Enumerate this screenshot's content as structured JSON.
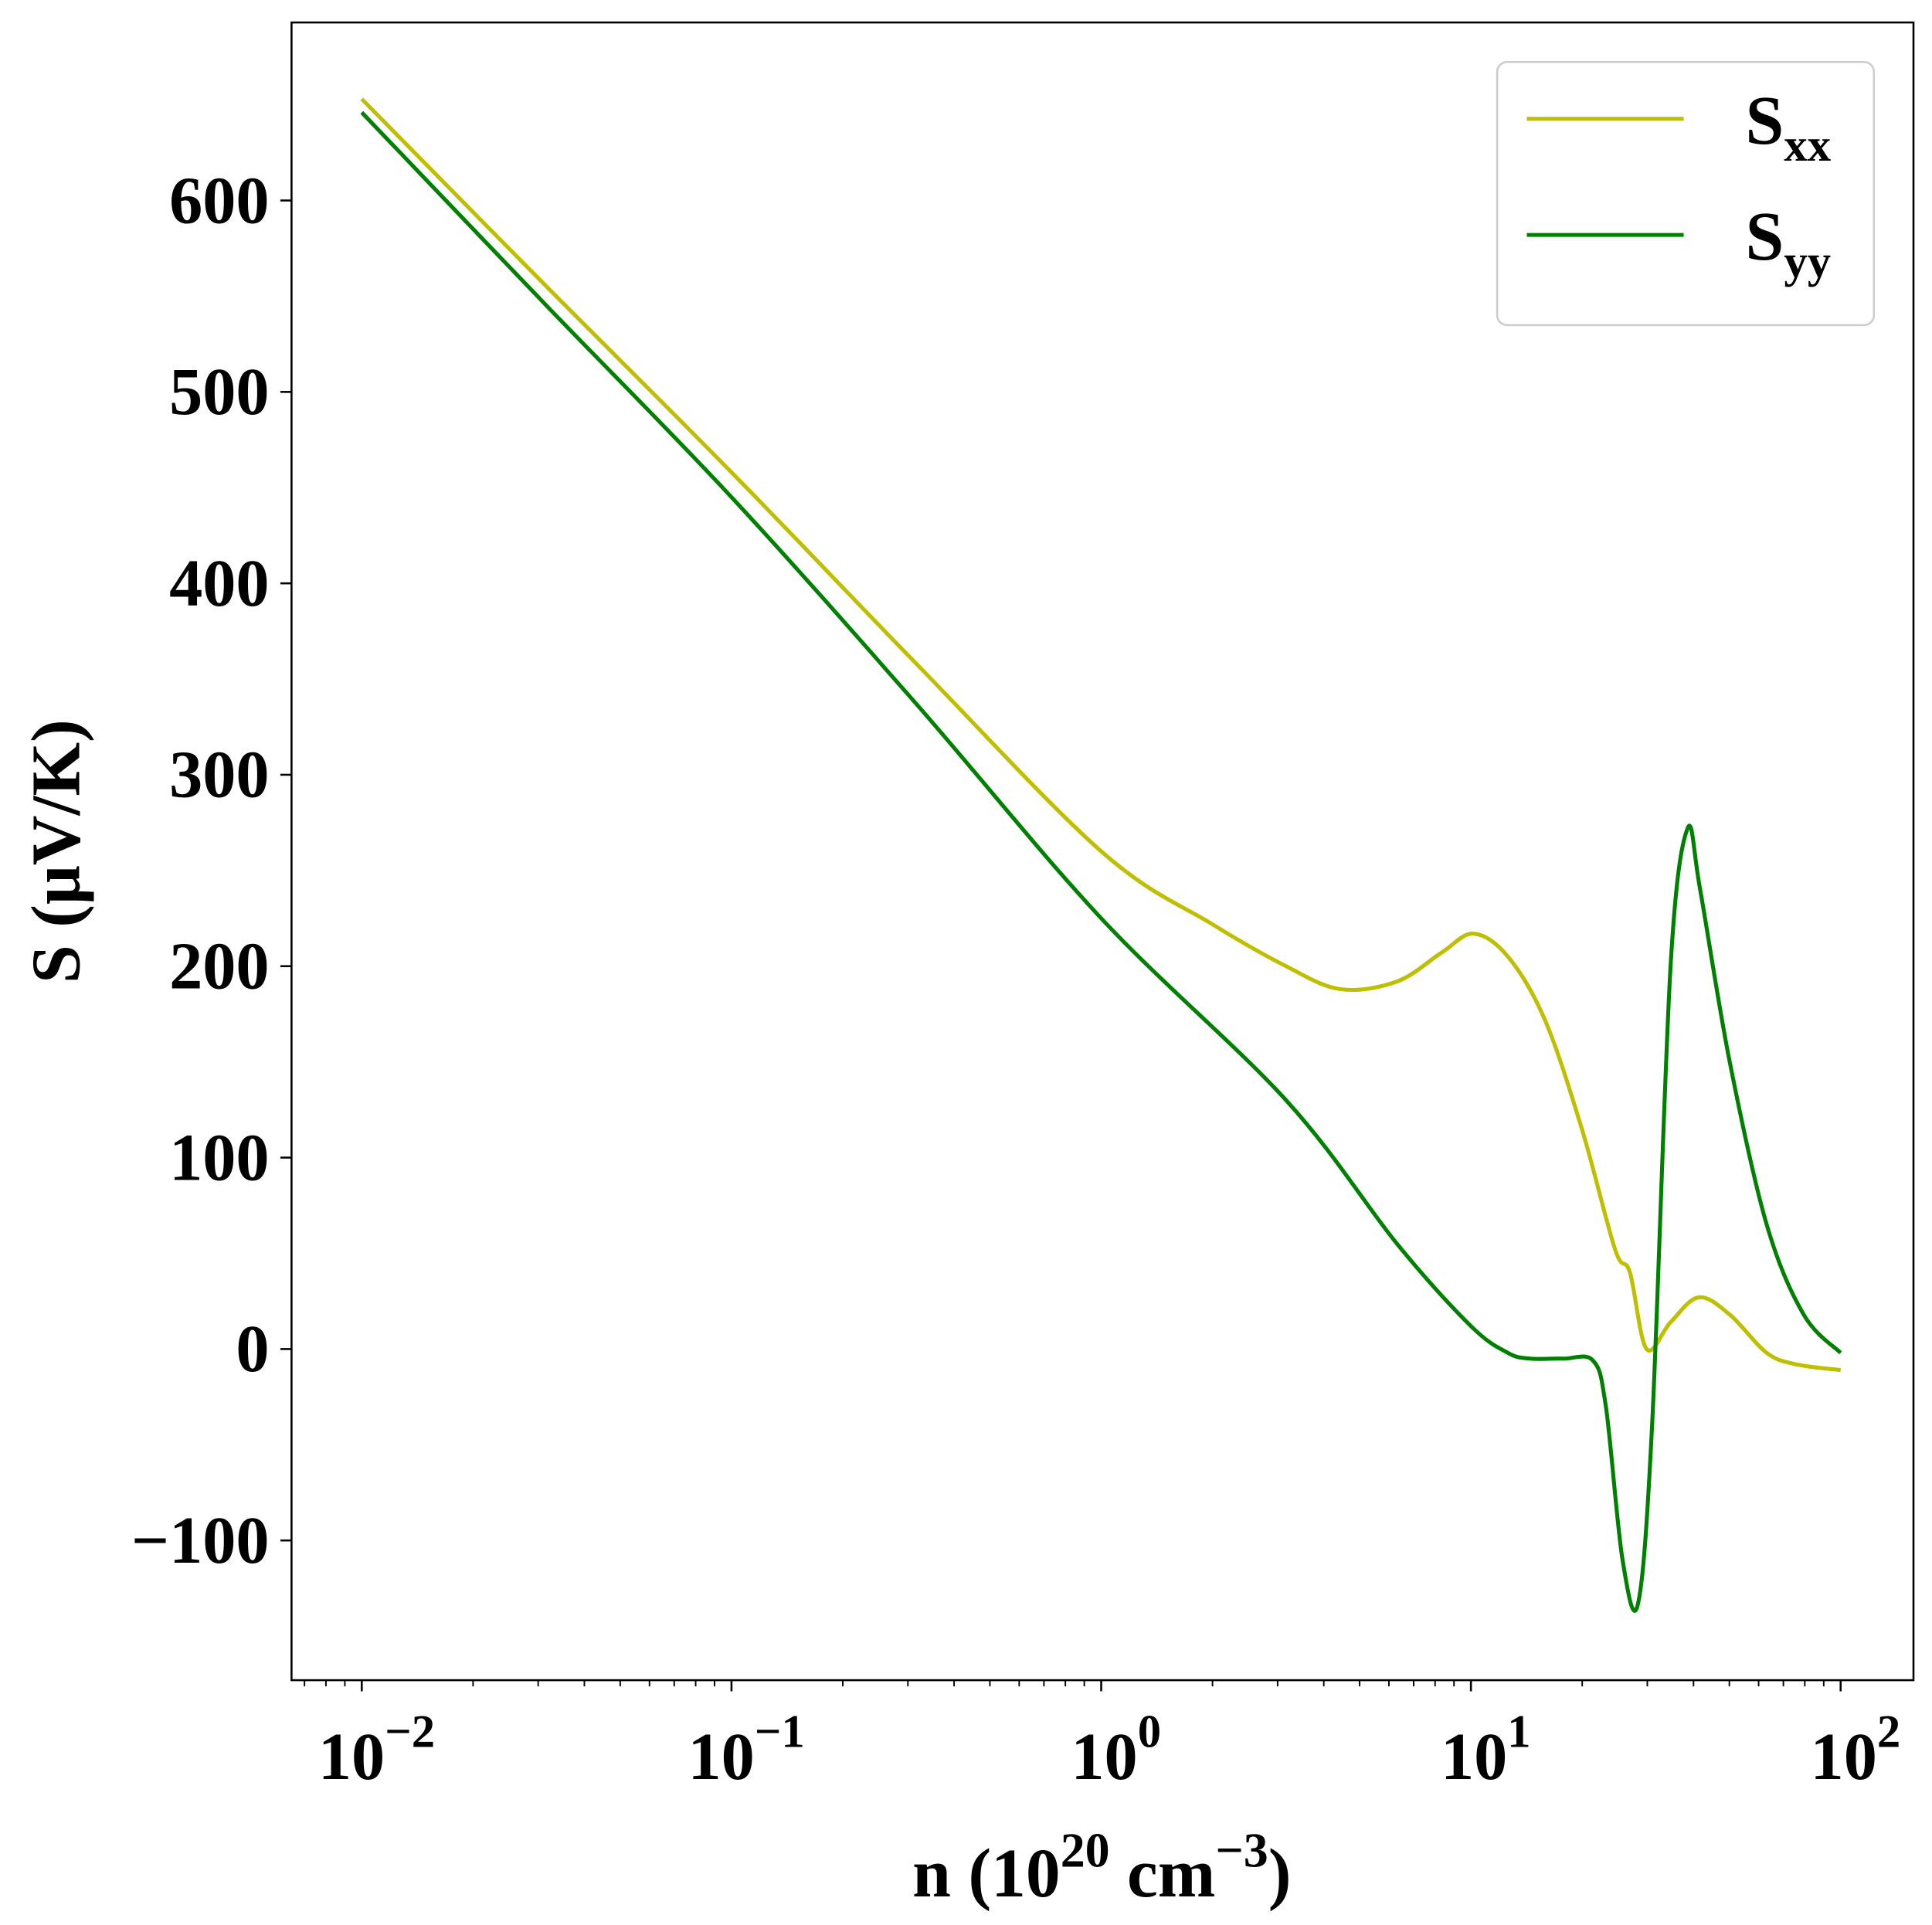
{
  "chart_data": {
    "type": "line",
    "title": "",
    "xlabel": "n (10",
    "xlabel_sup": "20",
    "xlabel_unit": " cm",
    "xlabel_unit_sup": "−3",
    "xlabel_close": ")",
    "ylabel": "S (μV/K)",
    "xscale": "log",
    "xlim_log10": [
      -2.19,
      2.197
    ],
    "ylim": [
      -173,
      693
    ],
    "grid": false,
    "legend_position": "top-right",
    "x_ticks": [
      {
        "base": "10",
        "exp": "−2",
        "log10": -2
      },
      {
        "base": "10",
        "exp": "−1",
        "log10": -1
      },
      {
        "base": "10",
        "exp": "0",
        "log10": 0
      },
      {
        "base": "10",
        "exp": "1",
        "log10": 1
      },
      {
        "base": "10",
        "exp": "2",
        "log10": 2
      }
    ],
    "y_ticks": [
      {
        "label": "−100",
        "value": -100
      },
      {
        "label": "0",
        "value": 0
      },
      {
        "label": "100",
        "value": 100
      },
      {
        "label": "200",
        "value": 200
      },
      {
        "label": "300",
        "value": 300
      },
      {
        "label": "400",
        "value": 400
      },
      {
        "label": "500",
        "value": 500
      },
      {
        "label": "600",
        "value": 600
      }
    ],
    "series": [
      {
        "name": "S",
        "sub": "xx",
        "color": "#bfbf00",
        "log10_x": [
          -2,
          -1.5,
          -1,
          -0.5,
          0,
          0.3,
          0.5,
          0.647,
          0.8,
          0.92,
          1.007,
          1.1,
          1.2,
          1.3,
          1.39,
          1.43,
          1.475,
          1.54,
          1.616,
          1.7,
          1.8,
          1.88,
          2
        ],
        "y": [
          653,
          555,
          458,
          358,
          260,
          222,
          200,
          188,
          192,
          207,
          217,
          205,
          172,
          115,
          52,
          40,
          0,
          14,
          27,
          18,
          -2,
          -8,
          -11
        ]
      },
      {
        "name": "S",
        "sub": "yy",
        "color": "#008000",
        "log10_x": [
          -2,
          -1.5,
          -1,
          -0.5,
          0,
          0.5,
          0.8,
          1.0,
          1.1,
          1.16,
          1.25,
          1.33,
          1.365,
          1.41,
          1.452,
          1.49,
          1.54,
          1.586,
          1.62,
          1.7,
          1.8,
          1.9,
          2
        ],
        "y": [
          646,
          545,
          445,
          337,
          225,
          130,
          55,
          12,
          -2,
          -5,
          -5,
          -6,
          -30,
          -110,
          -133,
          -40,
          200,
          272,
          240,
          150,
          65,
          18,
          -2
        ]
      }
    ]
  }
}
